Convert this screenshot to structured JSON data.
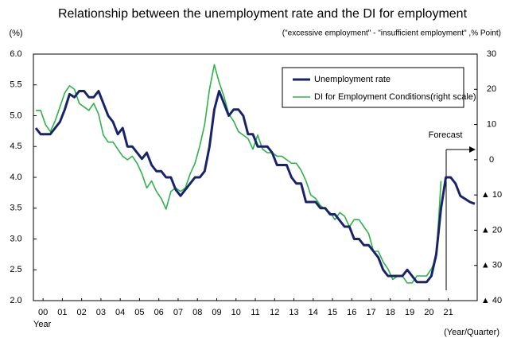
{
  "chart_data": {
    "type": "line",
    "title": "Relationship between the unemployment rate and the DI for employment",
    "subtitle": "(\"excessive employment\" - \"insufficient employment\" ,% Point)",
    "y_label": "(%)",
    "x_label": "Year",
    "x_label_right": "(Year/Quarter)",
    "annotation": "Forecast",
    "x": [
      2000.125,
      2000.375,
      2000.625,
      2000.875,
      2001.125,
      2001.375,
      2001.625,
      2001.875,
      2002.125,
      2002.375,
      2002.625,
      2002.875,
      2003.125,
      2003.375,
      2003.625,
      2003.875,
      2004.125,
      2004.375,
      2004.625,
      2004.875,
      2005.125,
      2005.375,
      2005.625,
      2005.875,
      2006.125,
      2006.375,
      2006.625,
      2006.875,
      2007.125,
      2007.375,
      2007.625,
      2007.875,
      2008.125,
      2008.375,
      2008.625,
      2008.875,
      2009.125,
      2009.375,
      2009.625,
      2009.875,
      2010.125,
      2010.375,
      2010.625,
      2010.875,
      2011.125,
      2011.375,
      2011.625,
      2011.875,
      2012.125,
      2012.375,
      2012.625,
      2012.875,
      2013.125,
      2013.375,
      2013.625,
      2013.875,
      2014.125,
      2014.375,
      2014.625,
      2014.875,
      2015.125,
      2015.375,
      2015.625,
      2015.875,
      2016.125,
      2016.375,
      2016.625,
      2016.875,
      2017.125,
      2017.375,
      2017.625,
      2017.875,
      2018.125,
      2018.375,
      2018.625,
      2018.875,
      2019.125,
      2019.375,
      2019.625,
      2019.875,
      2020.125,
      2020.375,
      2020.625,
      2020.875,
      2021.125,
      2021.375,
      2021.625,
      2021.875,
      2022.125,
      2022.375,
      2022.625,
      2022.875
    ],
    "xlim": [
      2000,
      2023
    ],
    "xticks": [
      {
        "value": 2000.5,
        "label": "00"
      },
      {
        "value": 2001.5,
        "label": "01"
      },
      {
        "value": 2002.5,
        "label": "02"
      },
      {
        "value": 2003.5,
        "label": "03"
      },
      {
        "value": 2004.5,
        "label": "04"
      },
      {
        "value": 2005.5,
        "label": "05"
      },
      {
        "value": 2006.5,
        "label": "06"
      },
      {
        "value": 2007.5,
        "label": "07"
      },
      {
        "value": 2008.5,
        "label": "08"
      },
      {
        "value": 2009.5,
        "label": "09"
      },
      {
        "value": 2010.5,
        "label": "10"
      },
      {
        "value": 2011.5,
        "label": "11"
      },
      {
        "value": 2012.5,
        "label": "12"
      },
      {
        "value": 2013.5,
        "label": "13"
      },
      {
        "value": 2014.5,
        "label": "14"
      },
      {
        "value": 2015.5,
        "label": "15"
      },
      {
        "value": 2016.5,
        "label": "16"
      },
      {
        "value": 2017.5,
        "label": "17"
      },
      {
        "value": 2018.5,
        "label": "18"
      },
      {
        "value": 2019.5,
        "label": "19"
      },
      {
        "value": 2020.5,
        "label": "20"
      },
      {
        "value": 2021.5,
        "label": "21"
      }
    ],
    "ylim": [
      2,
      6
    ],
    "yticks": [
      {
        "value": 6,
        "label": "6.0"
      },
      {
        "value": 5.5,
        "label": "5.5"
      },
      {
        "value": 5,
        "label": "5.0"
      },
      {
        "value": 4.5,
        "label": "4.5"
      },
      {
        "value": 4,
        "label": "4.0"
      },
      {
        "value": 3.5,
        "label": "3.5"
      },
      {
        "value": 3,
        "label": "3.0"
      },
      {
        "value": 2.5,
        "label": "2.5"
      },
      {
        "value": 2,
        "label": "2.0"
      }
    ],
    "y2lim": [
      -40,
      30
    ],
    "y2ticks": [
      30,
      20,
      10,
      0,
      {
        "value": -10,
        "label": "▲ 10"
      },
      {
        "value": -20,
        "label": "▲ 20"
      },
      {
        "value": -30,
        "label": "▲ 30"
      },
      {
        "value": -40,
        "label": "▲ 40"
      }
    ],
    "grid": false,
    "series": [
      {
        "name": "Unemployment rate",
        "color": "#17246b",
        "values": [
          4.8,
          4.7,
          4.7,
          4.7,
          4.8,
          4.9,
          5.1,
          5.35,
          5.3,
          5.4,
          5.4,
          5.3,
          5.3,
          5.4,
          5.2,
          5.0,
          4.9,
          4.7,
          4.8,
          4.5,
          4.5,
          4.4,
          4.3,
          4.4,
          4.2,
          4.1,
          4.1,
          4.0,
          4.0,
          3.8,
          3.7,
          3.8,
          3.9,
          4.0,
          4.0,
          4.1,
          4.5,
          5.1,
          5.4,
          5.2,
          5.0,
          5.1,
          5.1,
          5.0,
          4.7,
          4.7,
          4.5,
          4.5,
          4.5,
          4.4,
          4.2,
          4.2,
          4.2,
          4.0,
          3.9,
          3.9,
          3.6,
          3.6,
          3.6,
          3.5,
          3.5,
          3.4,
          3.4,
          3.3,
          3.2,
          3.2,
          3.0,
          3.0,
          2.9,
          2.9,
          2.8,
          2.7,
          2.5,
          2.4,
          2.4,
          2.4,
          2.4,
          2.5,
          2.4,
          2.3,
          2.3,
          2.3,
          2.4,
          2.75,
          3.5,
          4.0,
          4.0,
          3.9,
          3.7,
          3.65,
          3.6,
          3.57
        ]
      },
      {
        "name": "DI for Employment Conditions(right scale)",
        "color": "#2db34a",
        "axis": "y2",
        "values": [
          14,
          14,
          10,
          8,
          11,
          15,
          19,
          21,
          20,
          16,
          15,
          14,
          16,
          13,
          7,
          5,
          5,
          3,
          1,
          0,
          1,
          -1,
          -4,
          -8,
          -6,
          -9,
          -11,
          -14,
          -9,
          -8,
          -9,
          -8,
          -4,
          -1,
          4,
          10,
          20,
          27,
          22,
          18,
          13,
          11,
          8,
          7,
          6,
          3,
          7,
          3,
          2,
          2,
          1,
          1,
          0,
          -1,
          -1,
          -3,
          -6,
          -10,
          -11,
          -13,
          -14,
          -15,
          -17,
          -15,
          -16,
          -19,
          -17,
          -17,
          -19,
          -21,
          -26,
          -26,
          -29,
          -31,
          -34,
          -33,
          -33,
          -35,
          -35,
          -33,
          -33,
          -33,
          -31,
          -28,
          -6,
          null,
          null,
          null,
          null,
          null,
          null,
          null
        ]
      }
    ]
  }
}
